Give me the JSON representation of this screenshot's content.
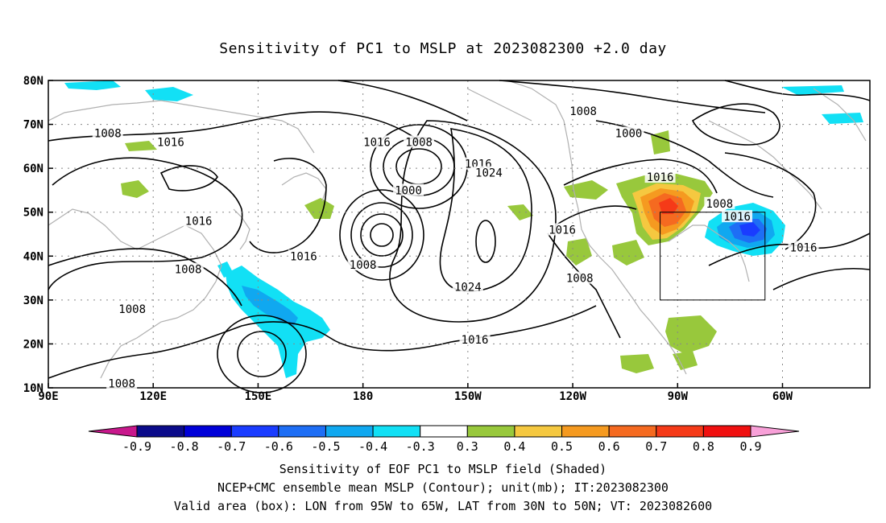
{
  "title": "Sensitivity of PC1 to MSLP at 2023082300 +2.0 day",
  "lat_labels": [
    "80N",
    "70N",
    "60N",
    "50N",
    "40N",
    "30N",
    "20N",
    "10N"
  ],
  "lon_labels": [
    "90E",
    "120E",
    "150E",
    "180",
    "150W",
    "120W",
    "90W",
    "60W"
  ],
  "contour_labels": [
    {
      "text": "1008",
      "lon": 107,
      "lat": 68
    },
    {
      "text": "1016",
      "lon": 125,
      "lat": 66
    },
    {
      "text": "1016",
      "lon": 133,
      "lat": 48
    },
    {
      "text": "1016",
      "lon": 163,
      "lat": 40
    },
    {
      "text": "1008",
      "lon": 130,
      "lat": 37
    },
    {
      "text": "1008",
      "lon": 114,
      "lat": 28
    },
    {
      "text": "1008",
      "lon": 111,
      "lat": 11
    },
    {
      "text": "1016",
      "lon": 184,
      "lat": 66
    },
    {
      "text": "1008",
      "lon": 196,
      "lat": 66
    },
    {
      "text": "1000",
      "lon": 193,
      "lat": 55
    },
    {
      "text": "1008",
      "lon": 180,
      "lat": 38
    },
    {
      "text": "1016",
      "lon": 213,
      "lat": 61
    },
    {
      "text": "1024",
      "lon": 216,
      "lat": 59
    },
    {
      "text": "1024",
      "lon": 210,
      "lat": 33
    },
    {
      "text": "1016",
      "lon": 212,
      "lat": 21
    },
    {
      "text": "1016",
      "lon": 237,
      "lat": 46
    },
    {
      "text": "1008",
      "lon": 242,
      "lat": 35
    },
    {
      "text": "1008",
      "lon": 243,
      "lat": 73
    },
    {
      "text": "1000",
      "lon": 256,
      "lat": 68
    },
    {
      "text": "1016",
      "lon": 265,
      "lat": 58
    },
    {
      "text": "1008",
      "lon": 282,
      "lat": 52
    },
    {
      "text": "1016",
      "lon": 287,
      "lat": 49
    },
    {
      "text": "1016",
      "lon": 306,
      "lat": 42
    }
  ],
  "colorbar": {
    "labels": [
      "-0.9",
      "-0.8",
      "-0.7",
      "-0.6",
      "-0.5",
      "-0.4",
      "-0.3",
      "0.3",
      "0.4",
      "0.5",
      "0.6",
      "0.7",
      "0.8",
      "0.9"
    ],
    "colors": [
      "#0b0b8a",
      "#0000d8",
      "#1a3cff",
      "#1e6ef5",
      "#10a8f0",
      "#12e0f5",
      "#ffffff",
      "#98c83c",
      "#f5c840",
      "#f59a20",
      "#f56a20",
      "#f53a18",
      "#f01010"
    ],
    "under_color": "#c8188c",
    "over_color": "#f8a0d8"
  },
  "valid_box": {
    "lon_min": -95,
    "lon_max": -65,
    "lat_min": 30,
    "lat_max": 50
  },
  "footer": {
    "line1": "Sensitivity of EOF PC1 to MSLP field (Shaded)",
    "line2": "NCEP+CMC ensemble mean MSLP (Contour); unit(mb); IT:2023082300",
    "line3": "Valid area (box): LON from 95W to 65W, LAT from 30N to 50N; VT: 2023082600"
  }
}
